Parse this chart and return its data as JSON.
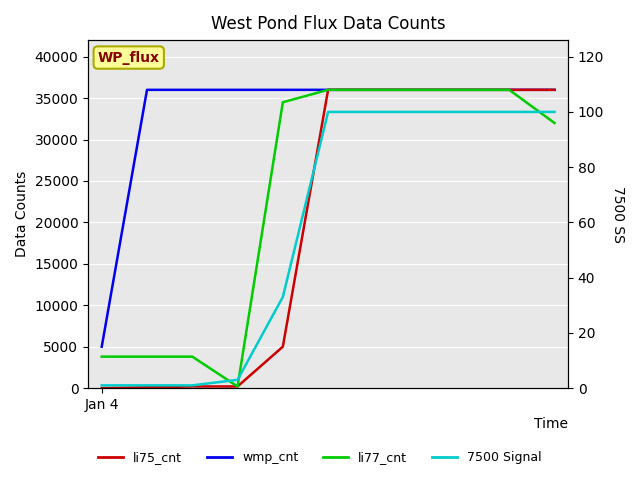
{
  "title": "West Pond Flux Data Counts",
  "xlabel": "Time",
  "ylabel_left": "Data Counts",
  "ylabel_right": "7500 SS",
  "annotation_text": "WP_flux",
  "background_color": "#e8e8e8",
  "ylim_left": [
    0,
    42000
  ],
  "ylim_right": [
    0,
    126
  ],
  "yticks_left": [
    0,
    5000,
    10000,
    15000,
    20000,
    25000,
    30000,
    35000,
    40000
  ],
  "yticks_right": [
    0,
    20,
    40,
    60,
    80,
    100,
    120
  ],
  "series": {
    "li75_cnt": {
      "color": "#cc0000",
      "x": [
        0,
        1,
        2,
        3,
        4,
        5,
        6,
        7,
        8,
        9,
        10
      ],
      "y": [
        0,
        100,
        200,
        200,
        5000,
        36000,
        36000,
        36000,
        36000,
        36000,
        36000
      ]
    },
    "wmp_cnt": {
      "color": "#0000ee",
      "x": [
        0,
        1,
        2,
        3,
        4,
        5,
        6,
        7,
        8,
        9,
        10
      ],
      "y": [
        5000,
        36000,
        36000,
        36000,
        36000,
        36000,
        36000,
        36000,
        36000,
        36000,
        36000
      ]
    },
    "li77_cnt": {
      "color": "#00cc00",
      "x": [
        0,
        1,
        2,
        3,
        4,
        5,
        6,
        7,
        8,
        9,
        10
      ],
      "y": [
        3800,
        3800,
        3800,
        200,
        34500,
        36000,
        36000,
        36000,
        36000,
        36000,
        32000
      ]
    },
    "7500_signal": {
      "color": "#00cccc",
      "x": [
        0,
        1,
        2,
        3,
        4,
        5,
        6,
        7,
        8,
        9,
        10
      ],
      "y": [
        1,
        1,
        1,
        3,
        33,
        100,
        100,
        100,
        100,
        100,
        100
      ]
    }
  },
  "legend": [
    {
      "label": "li75_cnt",
      "color": "#cc0000"
    },
    {
      "label": "wmp_cnt",
      "color": "#0000ee"
    },
    {
      "label": "li77_cnt",
      "color": "#00cc00"
    },
    {
      "label": "7500 Signal",
      "color": "#00cccc"
    }
  ],
  "linewidth": 1.8,
  "figsize": [
    6.4,
    4.8
  ],
  "dpi": 100
}
